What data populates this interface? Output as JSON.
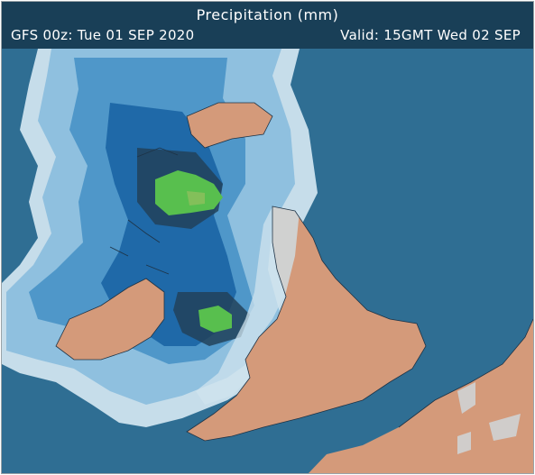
{
  "header": {
    "title": "Precipitation (mm)",
    "run": "GFS 00z: Tue 01 SEP 2020",
    "valid": "Valid: 15GMT Wed 02 SEP"
  },
  "colors": {
    "sea": "#2f6e93",
    "land": "#d49a7a",
    "header_bg": "#193f57",
    "precip_light": "#cfe3ee",
    "precip_pale_blue": "#8fc0df",
    "precip_mid_blue": "#4f97c9",
    "precip_blue": "#1f69a8",
    "precip_dark": "#22425a",
    "precip_green": "#58bf4e"
  }
}
